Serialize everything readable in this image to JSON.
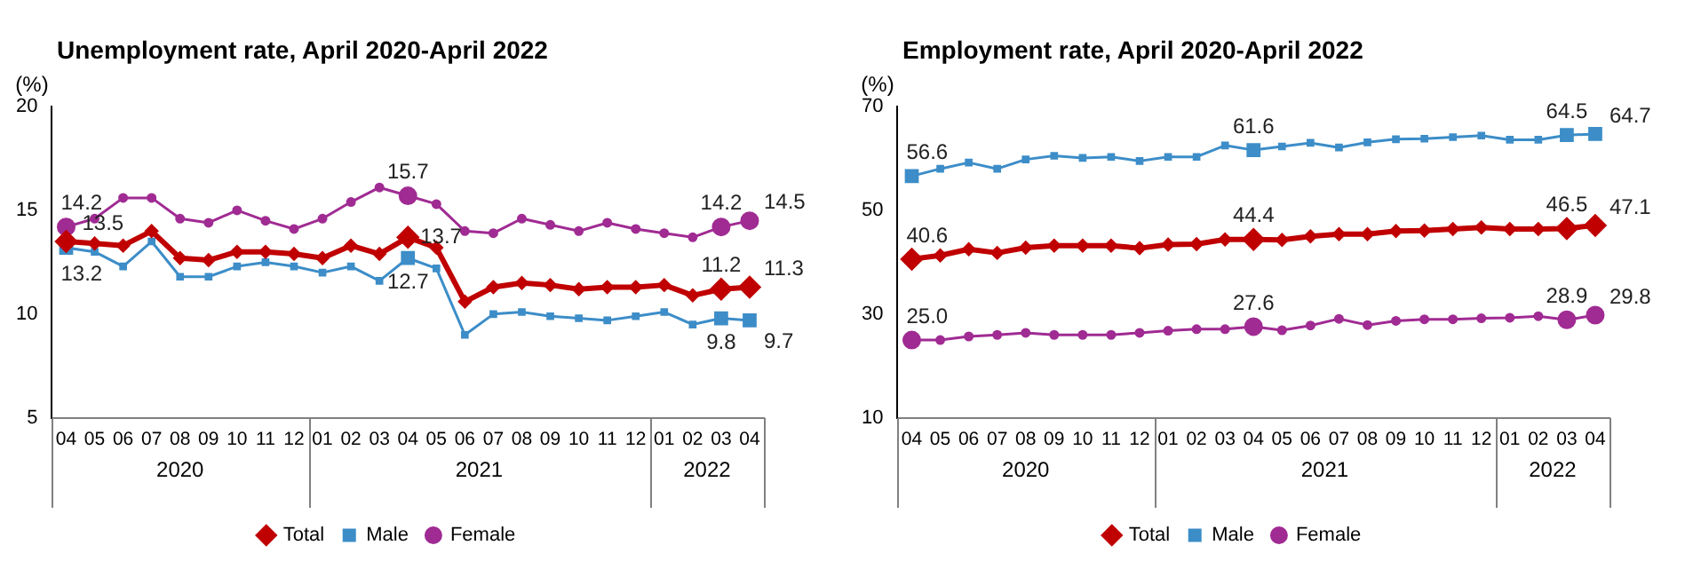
{
  "chart_data": [
    {
      "type": "line",
      "title": "Unemployment rate, April 2020-April 2022",
      "ylabel": "(%)",
      "categories": [
        "04",
        "05",
        "06",
        "07",
        "08",
        "09",
        "10",
        "11",
        "12",
        "01",
        "02",
        "03",
        "04",
        "05",
        "06",
        "07",
        "08",
        "09",
        "10",
        "11",
        "12",
        "01",
        "02",
        "03",
        "04"
      ],
      "annotations": [
        "2020",
        "2021",
        "2022"
      ],
      "ylim": [
        5,
        20
      ],
      "yticks": [
        5,
        10,
        15,
        20
      ],
      "grid": false,
      "legend": "bottom",
      "line_style": "solid",
      "series": [
        {
          "name": "Total",
          "color": "#c00000",
          "marker": "diamond",
          "values": [
            13.5,
            13.4,
            13.3,
            14.0,
            12.7,
            12.6,
            13.0,
            13.0,
            12.9,
            12.7,
            13.3,
            12.9,
            13.7,
            13.2,
            10.6,
            11.3,
            11.5,
            11.4,
            11.2,
            11.3,
            11.3,
            11.4,
            10.9,
            11.2,
            11.3
          ],
          "value_labels": [
            "13.5",
            null,
            null,
            null,
            null,
            null,
            null,
            null,
            null,
            null,
            null,
            null,
            "13.7",
            null,
            null,
            null,
            null,
            null,
            null,
            null,
            null,
            null,
            null,
            "11.2",
            "11.3"
          ]
        },
        {
          "name": "Male",
          "color": "#3c8dc8",
          "marker": "square",
          "values": [
            13.2,
            13.0,
            12.3,
            13.5,
            11.8,
            11.8,
            12.3,
            12.5,
            12.3,
            12.0,
            12.3,
            11.6,
            12.7,
            12.2,
            9.0,
            10.0,
            10.1,
            9.9,
            9.8,
            9.7,
            9.9,
            10.1,
            9.5,
            9.8,
            9.7
          ],
          "value_labels": [
            "13.2",
            null,
            null,
            null,
            null,
            null,
            null,
            null,
            null,
            null,
            null,
            null,
            "12.7",
            null,
            null,
            null,
            null,
            null,
            null,
            null,
            null,
            null,
            null,
            "9.8",
            "9.7"
          ]
        },
        {
          "name": "Female",
          "color": "#a02b93",
          "marker": "circle",
          "values": [
            14.2,
            14.6,
            15.6,
            15.6,
            14.6,
            14.4,
            15.0,
            14.5,
            14.1,
            14.6,
            15.4,
            16.1,
            15.7,
            15.3,
            14.0,
            13.9,
            14.6,
            14.3,
            14.0,
            14.4,
            14.1,
            13.9,
            13.7,
            14.2,
            14.5
          ],
          "value_labels": [
            "14.2",
            null,
            null,
            null,
            null,
            null,
            null,
            null,
            null,
            null,
            null,
            null,
            "15.7",
            null,
            null,
            null,
            null,
            null,
            null,
            null,
            null,
            null,
            null,
            "14.2",
            "14.5"
          ]
        }
      ]
    },
    {
      "type": "line",
      "title": "Employment rate, April 2020-April 2022",
      "ylabel": "(%)",
      "categories": [
        "04",
        "05",
        "06",
        "07",
        "08",
        "09",
        "10",
        "11",
        "12",
        "01",
        "02",
        "03",
        "04",
        "05",
        "06",
        "07",
        "08",
        "09",
        "10",
        "11",
        "12",
        "01",
        "02",
        "03",
        "04"
      ],
      "annotations": [
        "2020",
        "2021",
        "2022"
      ],
      "ylim": [
        10,
        70
      ],
      "yticks": [
        10,
        30,
        50,
        70
      ],
      "grid": false,
      "legend": "bottom",
      "line_style": "solid",
      "series": [
        {
          "name": "Total",
          "color": "#c00000",
          "marker": "diamond",
          "values": [
            40.6,
            41.3,
            42.5,
            41.8,
            42.8,
            43.2,
            43.2,
            43.2,
            42.7,
            43.4,
            43.5,
            44.4,
            44.4,
            44.3,
            45.0,
            45.4,
            45.4,
            46.0,
            46.1,
            46.4,
            46.7,
            46.4,
            46.4,
            46.5,
            47.1
          ],
          "value_labels": [
            "40.6",
            null,
            null,
            null,
            null,
            null,
            null,
            null,
            null,
            null,
            null,
            null,
            "44.4",
            null,
            null,
            null,
            null,
            null,
            null,
            null,
            null,
            null,
            null,
            "46.5",
            "47.1"
          ]
        },
        {
          "name": "Male",
          "color": "#3c8dc8",
          "marker": "square",
          "values": [
            56.6,
            58.0,
            59.2,
            58.0,
            59.8,
            60.5,
            60.1,
            60.3,
            59.5,
            60.3,
            60.3,
            62.5,
            61.6,
            62.3,
            63.0,
            62.1,
            63.1,
            63.7,
            63.8,
            64.1,
            64.4,
            63.6,
            63.6,
            64.5,
            64.7
          ],
          "value_labels": [
            "56.6",
            null,
            null,
            null,
            null,
            null,
            null,
            null,
            null,
            null,
            null,
            null,
            "61.6",
            null,
            null,
            null,
            null,
            null,
            null,
            null,
            null,
            null,
            null,
            "64.5",
            "64.7"
          ]
        },
        {
          "name": "Female",
          "color": "#a02b93",
          "marker": "circle",
          "values": [
            25.0,
            25.0,
            25.7,
            26.0,
            26.4,
            26.0,
            26.0,
            26.0,
            26.4,
            26.8,
            27.1,
            27.1,
            27.6,
            26.9,
            27.8,
            29.1,
            27.9,
            28.7,
            29.0,
            29.0,
            29.2,
            29.3,
            29.6,
            28.9,
            29.8
          ],
          "value_labels": [
            "25.0",
            null,
            null,
            null,
            null,
            null,
            null,
            null,
            null,
            null,
            null,
            null,
            "27.6",
            null,
            null,
            null,
            null,
            null,
            null,
            null,
            null,
            null,
            null,
            "28.9",
            "29.8"
          ]
        }
      ]
    }
  ]
}
